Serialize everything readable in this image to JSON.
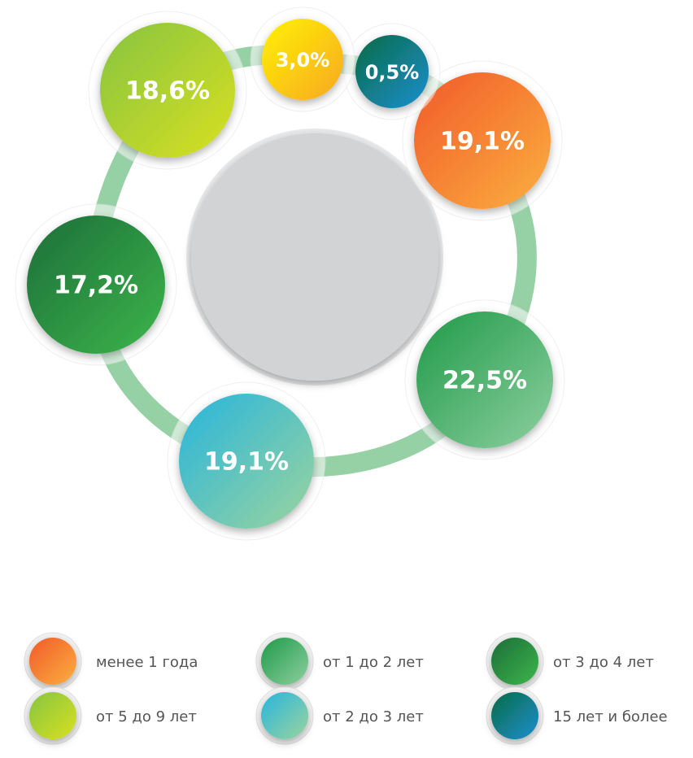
{
  "chart_data": {
    "type": "bubble",
    "categories": [
      "менее 1 года",
      "от 1 до 2 лет",
      "от 3 до 4 лет",
      "от 5 до 9 лет",
      "от 2 до 3 лет",
      "15 лет и более",
      null
    ],
    "values": [
      19.1,
      22.5,
      17.2,
      18.6,
      19.1,
      0.5,
      3.0
    ],
    "value_labels": [
      "19,1%",
      "22,5%",
      "17,2%",
      "18,6%",
      "19,1%",
      "0,5%",
      "3,0%"
    ],
    "colors": [
      [
        "#f15a29",
        "#fbb040"
      ],
      [
        "#1f9a48",
        "#8dcfa0"
      ],
      [
        "#1c6e3a",
        "#3db54a"
      ],
      [
        "#86c440",
        "#d9e021"
      ],
      [
        "#27b5dd",
        "#9bd49e"
      ],
      [
        "#0a6b45",
        "#1b8fd0"
      ],
      [
        "#fff200",
        "#f7a823"
      ]
    ]
  }
}
